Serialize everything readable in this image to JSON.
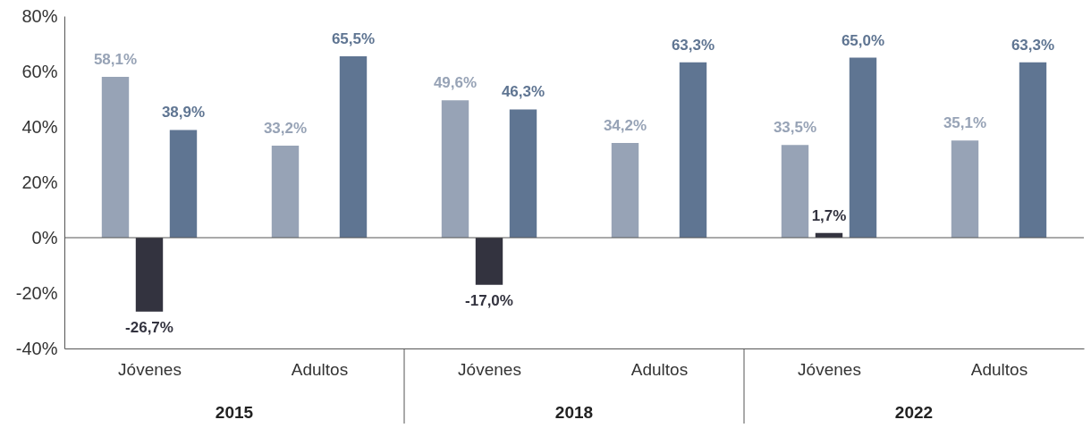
{
  "chart_data": {
    "type": "bar",
    "categories": [
      "Jóvenes",
      "Adultos",
      "Jóvenes",
      "Adultos",
      "Jóvenes",
      "Adultos"
    ],
    "series": [
      {
        "color": "#97a3b6",
        "values": [
          58.1,
          33.2,
          49.6,
          34.2,
          33.5,
          35.1
        ],
        "value_labels": [
          "58,1%",
          "33,2%",
          "49,6%",
          "34,2%",
          "33,5%",
          "35,1%"
        ]
      },
      {
        "color": "#5f7592",
        "values": [
          38.9,
          65.5,
          46.3,
          63.3,
          65.0,
          63.3
        ],
        "value_labels": [
          "38,9%",
          "65,5%",
          "46,3%",
          "63,3%",
          "65,0%",
          "63,3%"
        ]
      },
      {
        "color": "#33333f",
        "values": [
          -26.7,
          null,
          -17.0,
          null,
          1.7,
          null
        ],
        "value_labels": [
          "-26,7%",
          null,
          "-17,0%",
          null,
          "1,7%",
          null
        ]
      }
    ],
    "ylim": [
      -40,
      80
    ],
    "yticks": [
      {
        "value": -40,
        "label": "-40%"
      },
      {
        "value": -20,
        "label": "-20%"
      },
      {
        "value": 0,
        "label": "0%"
      },
      {
        "value": 20,
        "label": "20%"
      },
      {
        "value": 40,
        "label": "40%"
      },
      {
        "value": 60,
        "label": "60%"
      },
      {
        "value": 80,
        "label": "80%"
      }
    ],
    "annotations": [
      "2015",
      "2018",
      "2022"
    ]
  }
}
